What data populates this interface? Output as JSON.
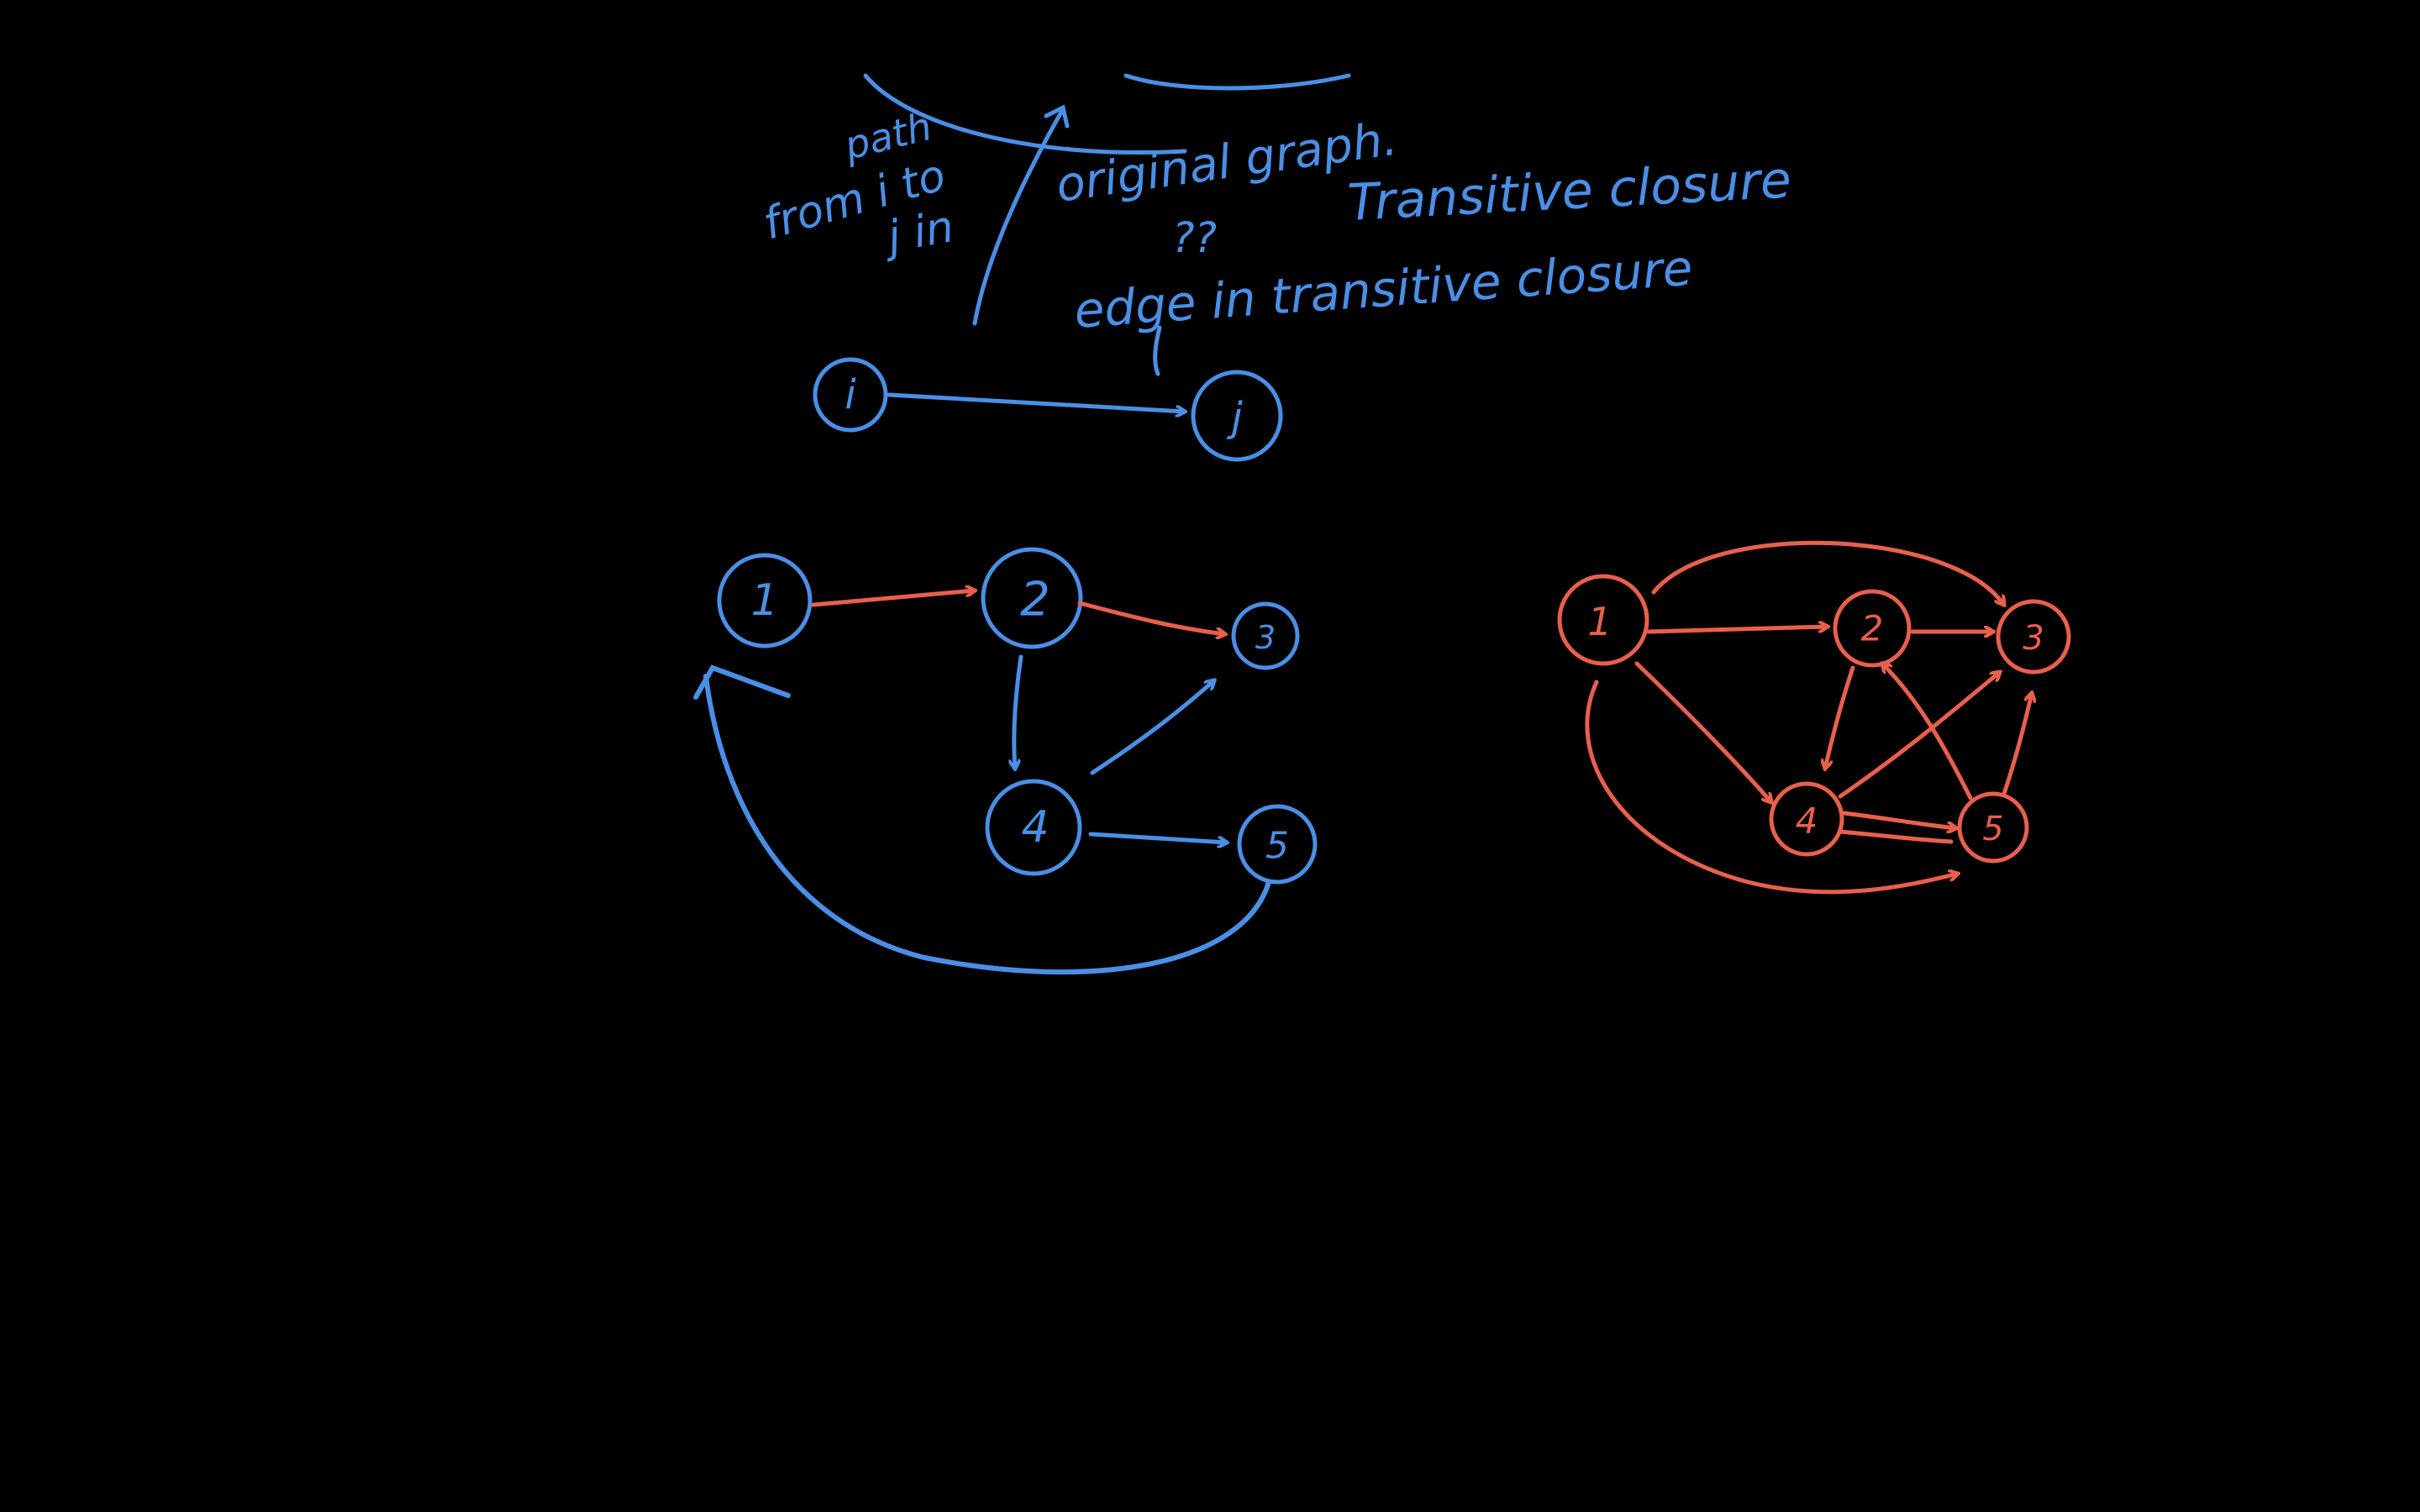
{
  "colors": {
    "background": "#000000",
    "blue_ink": "#4a8fe6",
    "red_ink": "#e8604c"
  },
  "notes": {
    "path": "path",
    "from_i_to": "from i to",
    "j_in": "j in",
    "original_graph": "original graph.",
    "question_marks": "??",
    "transitive_closure": "Transitive closure",
    "edge_in_transitive_closure": "edge in transitive closure"
  },
  "example_edge": {
    "from": "i",
    "to": "j"
  },
  "original_graph": {
    "nodes": [
      "1",
      "2",
      "3",
      "4",
      "5"
    ],
    "edges": [
      [
        "1",
        "2"
      ],
      [
        "2",
        "3"
      ],
      [
        "2",
        "4"
      ],
      [
        "4",
        "3"
      ],
      [
        "4",
        "5"
      ],
      [
        "5",
        "1"
      ]
    ]
  },
  "closure_graph": {
    "nodes": [
      "1",
      "2",
      "3",
      "4",
      "5"
    ],
    "edges": [
      [
        "1",
        "2"
      ],
      [
        "1",
        "3"
      ],
      [
        "1",
        "4"
      ],
      [
        "1",
        "5"
      ],
      [
        "2",
        "3"
      ],
      [
        "2",
        "4"
      ],
      [
        "4",
        "3"
      ],
      [
        "4",
        "5"
      ],
      [
        "5",
        "2"
      ],
      [
        "5",
        "3"
      ]
    ]
  }
}
